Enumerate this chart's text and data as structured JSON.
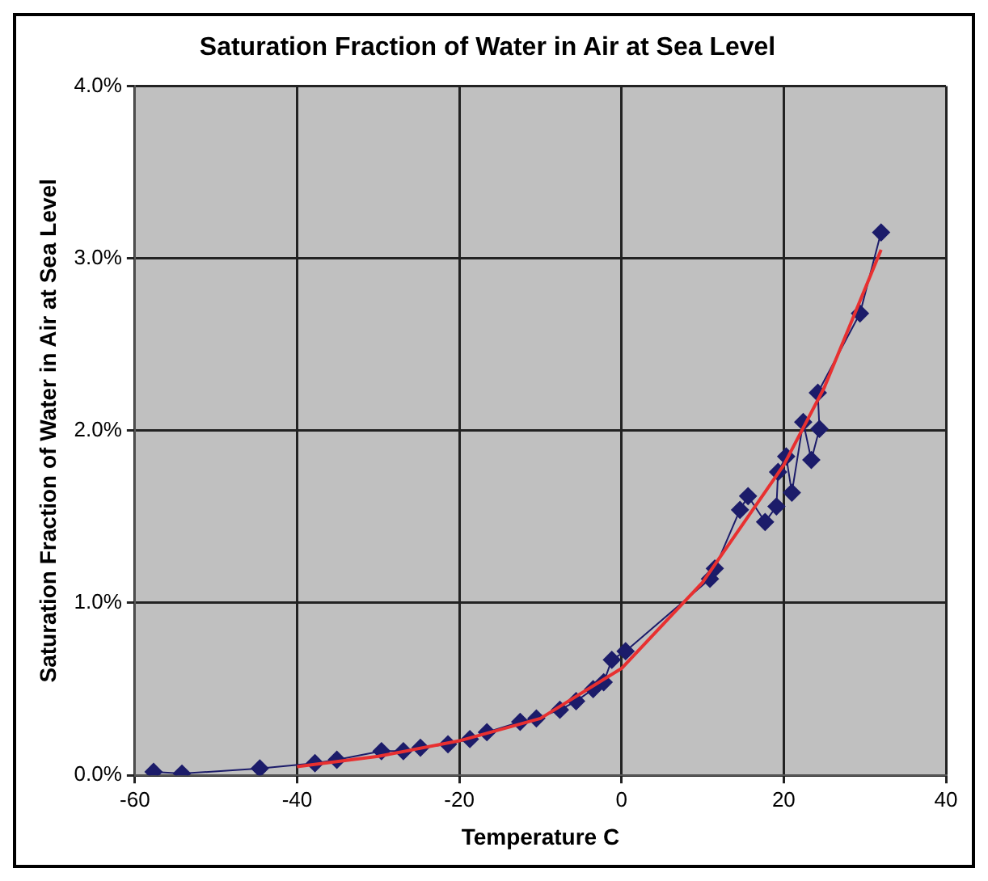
{
  "chart_data": {
    "type": "line",
    "title": "Saturation Fraction of Water in Air at Sea Level",
    "xlabel": "Temperature C",
    "ylabel": "Saturation Fraction of Water in Air at Sea Level",
    "xlim": [
      -60,
      40
    ],
    "xticks": [
      -60,
      -40,
      -20,
      0,
      20,
      40
    ],
    "ylim": [
      0,
      4
    ],
    "yticks": [
      {
        "value": 0,
        "label": "0.0%"
      },
      {
        "value": 1,
        "label": "1.0%"
      },
      {
        "value": 2,
        "label": "2.0%"
      },
      {
        "value": 3,
        "label": "3.0%"
      },
      {
        "value": 4,
        "label": "4.0%"
      }
    ],
    "grid": true,
    "legend": false,
    "line_style": "solid",
    "series": [
      {
        "color": "#1c1c6a",
        "marker": "diamond",
        "x": [
          -57.7,
          -54.2,
          -44.6,
          -37.8,
          -35.1,
          -29.6,
          -26.9,
          -24.8,
          -21.4,
          -18.7,
          -16.6,
          -12.5,
          -10.5,
          -7.6,
          -5.6,
          -3.5,
          -2.2,
          -1.2,
          0.5,
          10.9,
          11.5,
          14.6,
          15.6,
          17.7,
          19.1,
          19.3,
          20.3,
          21,
          22.4,
          23.4,
          24.4,
          24.2,
          29.4,
          32
        ],
        "values": [
          0.02,
          0.01,
          0.04,
          0.07,
          0.09,
          0.14,
          0.14,
          0.16,
          0.18,
          0.21,
          0.25,
          0.31,
          0.33,
          0.38,
          0.43,
          0.5,
          0.54,
          0.67,
          0.72,
          1.14,
          1.2,
          1.54,
          1.62,
          1.47,
          1.56,
          1.76,
          1.85,
          1.64,
          2.05,
          1.83,
          2.01,
          2.22,
          2.68,
          3.15
        ]
      },
      {
        "type": "line",
        "color": "#e83030",
        "marker": "none",
        "x": [
          -40,
          -30,
          -20,
          -10,
          0,
          10,
          20,
          25,
          32
        ],
        "values": [
          0.05,
          0.11,
          0.2,
          0.33,
          0.62,
          1.12,
          1.8,
          2.25,
          3.05
        ]
      }
    ]
  }
}
